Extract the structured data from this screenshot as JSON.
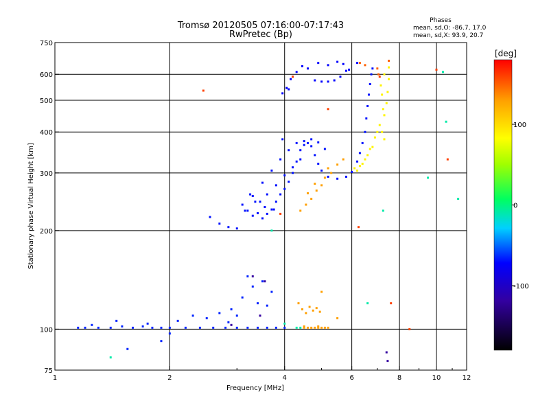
{
  "chart_data": {
    "type": "scatter",
    "title": "Tromsø 20120505 07:16:00-07:17:43",
    "subtitle": "RwPretec (Bp)",
    "xlabel": "Frequency [MHz]",
    "ylabel": "Stationary phase Virtual Height [km]",
    "x_scale": "log",
    "y_scale": "log",
    "xlim": [
      1,
      12
    ],
    "ylim": [
      75,
      750
    ],
    "grid": true,
    "x_ticks": [
      1,
      2,
      4,
      6,
      8,
      10,
      12
    ],
    "x_tick_labels": [
      "1",
      "2",
      "4",
      "6",
      "8",
      "10",
      "12"
    ],
    "x_grid": [
      2,
      4,
      6,
      8,
      10
    ],
    "y_ticks": [
      75,
      100,
      200,
      300,
      400,
      500,
      600,
      750
    ],
    "y_tick_labels": [
      "75",
      "100",
      "200",
      "300",
      "400",
      "500",
      "600",
      "750"
    ],
    "y_grid": [
      100,
      200,
      300,
      400,
      500,
      600
    ],
    "stats": {
      "heading": "Phases",
      "line1": "mean, sd,O: -86.7, 17.0",
      "line2": "mean, sd,X:  93.9, 20.7"
    },
    "colorbar": {
      "label": "[deg]",
      "ticks": [
        100,
        0,
        -100
      ],
      "tick_labels": [
        "100",
        "0",
        "-100"
      ],
      "range": [
        -180,
        180
      ]
    },
    "colors": {
      "o_mode": "#1f40e6",
      "x_mode": "#ffa500",
      "x_mode_high": "#e6e600"
    },
    "series": [
      {
        "phase": -100,
        "points": [
          [
            1.15,
            101
          ],
          [
            1.2,
            101
          ],
          [
            1.3,
            101
          ],
          [
            1.4,
            101
          ],
          [
            1.5,
            102
          ],
          [
            1.6,
            101
          ],
          [
            1.7,
            102
          ],
          [
            1.8,
            101
          ],
          [
            1.9,
            101
          ],
          [
            2.0,
            101
          ],
          [
            2.2,
            101
          ],
          [
            2.4,
            101
          ],
          [
            2.6,
            101
          ],
          [
            2.8,
            101
          ],
          [
            3.0,
            101
          ],
          [
            3.2,
            101
          ],
          [
            3.4,
            101
          ],
          [
            3.6,
            101
          ],
          [
            3.8,
            101
          ],
          [
            4.0,
            101
          ],
          [
            1.25,
            103
          ],
          [
            1.45,
            106
          ],
          [
            1.75,
            104
          ],
          [
            2.1,
            106
          ],
          [
            2.3,
            110
          ],
          [
            2.5,
            108
          ],
          [
            2.7,
            112
          ],
          [
            2.9,
            115
          ],
          [
            3.1,
            125
          ],
          [
            3.3,
            135
          ],
          [
            3.5,
            140
          ],
          [
            3.7,
            130
          ],
          [
            3.2,
            145
          ],
          [
            3.4,
            120
          ],
          [
            3.6,
            118
          ],
          [
            3.0,
            110
          ],
          [
            2.85,
            105
          ],
          [
            1.55,
            87
          ],
          [
            1.9,
            92
          ],
          [
            2.0,
            97
          ]
        ]
      },
      {
        "phase": -105,
        "points": [
          [
            2.55,
            220
          ],
          [
            2.7,
            210
          ],
          [
            2.85,
            205
          ],
          [
            3.0,
            203
          ],
          [
            3.2,
            230
          ],
          [
            3.35,
            245
          ],
          [
            3.4,
            226
          ],
          [
            3.5,
            218
          ],
          [
            3.6,
            225
          ],
          [
            3.7,
            232
          ],
          [
            3.8,
            245
          ],
          [
            3.9,
            258
          ],
          [
            4.0,
            268
          ],
          [
            4.1,
            282
          ],
          [
            4.2,
            300
          ],
          [
            4.3,
            325
          ],
          [
            4.4,
            352
          ],
          [
            4.5,
            365
          ],
          [
            4.6,
            370
          ],
          [
            4.7,
            362
          ],
          [
            4.8,
            340
          ],
          [
            4.9,
            320
          ],
          [
            5.0,
            305
          ],
          [
            5.2,
            292
          ],
          [
            5.5,
            288
          ],
          [
            5.8,
            292
          ],
          [
            6.0,
            302
          ],
          [
            6.2,
            325
          ],
          [
            6.3,
            345
          ],
          [
            6.4,
            370
          ],
          [
            6.5,
            400
          ],
          [
            6.55,
            440
          ],
          [
            6.6,
            480
          ],
          [
            6.65,
            520
          ],
          [
            6.7,
            560
          ],
          [
            6.75,
            600
          ],
          [
            6.8,
            625
          ],
          [
            3.3,
            255
          ],
          [
            3.5,
            280
          ],
          [
            3.7,
            305
          ],
          [
            3.9,
            330
          ],
          [
            4.1,
            352
          ],
          [
            4.3,
            370
          ],
          [
            4.5,
            375
          ],
          [
            4.7,
            380
          ],
          [
            4.9,
            372
          ],
          [
            5.1,
            355
          ],
          [
            3.6,
            258
          ],
          [
            3.8,
            275
          ],
          [
            4.0,
            295
          ],
          [
            4.2,
            312
          ],
          [
            4.4,
            330
          ],
          [
            3.75,
            232
          ],
          [
            3.55,
            236
          ],
          [
            3.45,
            245
          ],
          [
            3.25,
            258
          ],
          [
            3.1,
            240
          ],
          [
            3.15,
            230
          ],
          [
            3.3,
            222
          ],
          [
            3.95,
            380
          ]
        ]
      },
      {
        "phase": -110,
        "points": [
          [
            3.95,
            525
          ],
          [
            4.05,
            545
          ],
          [
            4.15,
            580
          ],
          [
            4.3,
            610
          ],
          [
            4.45,
            635
          ],
          [
            4.6,
            625
          ],
          [
            4.8,
            575
          ],
          [
            5.0,
            570
          ],
          [
            5.2,
            570
          ],
          [
            5.4,
            575
          ],
          [
            5.6,
            590
          ],
          [
            5.8,
            615
          ],
          [
            4.9,
            650
          ],
          [
            5.2,
            640
          ],
          [
            5.5,
            655
          ],
          [
            5.7,
            645
          ],
          [
            5.9,
            620
          ],
          [
            6.2,
            650
          ],
          [
            4.1,
            540
          ],
          [
            4.2,
            590
          ]
        ]
      },
      {
        "phase": 130,
        "points": [
          [
            4.4,
            230
          ],
          [
            4.55,
            240
          ],
          [
            4.7,
            250
          ],
          [
            4.85,
            265
          ],
          [
            5.0,
            275
          ],
          [
            5.1,
            290
          ],
          [
            5.3,
            300
          ],
          [
            5.5,
            318
          ],
          [
            5.7,
            330
          ],
          [
            4.6,
            260
          ],
          [
            4.8,
            278
          ],
          [
            5.2,
            310
          ],
          [
            4.35,
            120
          ],
          [
            4.45,
            115
          ],
          [
            4.55,
            112
          ],
          [
            4.65,
            117
          ],
          [
            4.75,
            114
          ],
          [
            4.85,
            116
          ],
          [
            4.95,
            113
          ],
          [
            4.5,
            101
          ],
          [
            4.6,
            101
          ],
          [
            4.7,
            101
          ],
          [
            4.8,
            101
          ],
          [
            4.9,
            101
          ],
          [
            5.0,
            101
          ],
          [
            5.1,
            101
          ],
          [
            5.2,
            101
          ],
          [
            4.5,
            102
          ],
          [
            4.9,
            102
          ],
          [
            5.0,
            130
          ],
          [
            5.5,
            108
          ]
        ]
      },
      {
        "phase": 90,
        "points": [
          [
            6.1,
            310
          ],
          [
            6.3,
            315
          ],
          [
            6.5,
            330
          ],
          [
            6.7,
            355
          ],
          [
            6.9,
            385
          ],
          [
            7.1,
            420
          ],
          [
            7.3,
            450
          ],
          [
            7.4,
            490
          ],
          [
            7.45,
            530
          ],
          [
            7.5,
            580
          ],
          [
            7.5,
            630
          ],
          [
            7.3,
            600
          ],
          [
            7.15,
            555
          ],
          [
            7.2,
            520
          ],
          [
            7.25,
            470
          ],
          [
            7.0,
            400
          ],
          [
            7.2,
            400
          ],
          [
            7.3,
            380
          ],
          [
            6.8,
            360
          ],
          [
            6.6,
            340
          ],
          [
            6.4,
            320
          ],
          [
            6.2,
            305
          ]
        ]
      },
      {
        "phase": 150,
        "points": [
          [
            6.3,
            650
          ],
          [
            6.5,
            640
          ],
          [
            7.05,
            600
          ],
          [
            7.0,
            625
          ],
          [
            7.5,
            660
          ]
        ]
      },
      {
        "phase": -20,
        "points": [
          [
            1.4,
            82
          ],
          [
            3.7,
            200
          ],
          [
            4.0,
            104
          ],
          [
            4.3,
            101
          ],
          [
            4.4,
            101
          ],
          [
            6.6,
            120
          ],
          [
            7.25,
            230
          ],
          [
            9.5,
            290
          ],
          [
            10.4,
            610
          ],
          [
            11.4,
            250
          ],
          [
            10.6,
            430
          ]
        ]
      },
      {
        "phase": 160,
        "points": [
          [
            2.45,
            535
          ],
          [
            3.9,
            225
          ],
          [
            6.25,
            205
          ],
          [
            4.2,
            590
          ],
          [
            5.2,
            470
          ],
          [
            7.1,
            590
          ],
          [
            7.6,
            120
          ],
          [
            8.5,
            100
          ],
          [
            10.0,
            620
          ],
          [
            10.7,
            330
          ]
        ]
      },
      {
        "phase": -150,
        "points": [
          [
            3.3,
            145
          ],
          [
            3.55,
            140
          ],
          [
            3.45,
            110
          ],
          [
            2.9,
            103
          ],
          [
            7.4,
            85
          ],
          [
            7.45,
            80
          ]
        ]
      }
    ]
  }
}
